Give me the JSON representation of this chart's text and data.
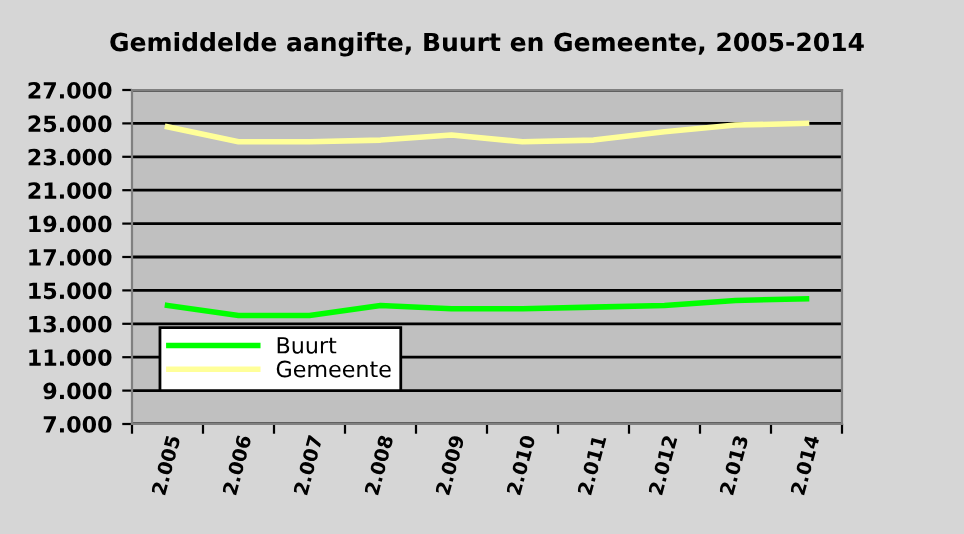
{
  "chart_data": {
    "type": "line",
    "title": "Gemiddelde aangifte, Buurt en Gemeente, 2005-2014",
    "categories": [
      "2.005",
      "2.006",
      "2.007",
      "2.008",
      "2.009",
      "2.010",
      "2.011",
      "2.012",
      "2.013",
      "2.014"
    ],
    "series": [
      {
        "name": "Buurt",
        "color": "#00ff00",
        "values": [
          14100,
          13500,
          13500,
          14100,
          13900,
          13900,
          14000,
          14100,
          14400,
          14500
        ]
      },
      {
        "name": "Gemeente",
        "color": "#ffff99",
        "values": [
          24800,
          23900,
          23900,
          24000,
          24300,
          23900,
          24000,
          24500,
          24900,
          25000
        ]
      }
    ],
    "ylim": [
      7000,
      27000
    ],
    "yticks": [
      {
        "value": 7000,
        "label": "7.000"
      },
      {
        "value": 9000,
        "label": "9.000"
      },
      {
        "value": 11000,
        "label": "11.000"
      },
      {
        "value": 13000,
        "label": "13.000"
      },
      {
        "value": 15000,
        "label": "15.000"
      },
      {
        "value": 17000,
        "label": "17.000"
      },
      {
        "value": 19000,
        "label": "19.000"
      },
      {
        "value": 21000,
        "label": "21.000"
      },
      {
        "value": 23000,
        "label": "23.000"
      },
      {
        "value": 25000,
        "label": "25.000"
      },
      {
        "value": 27000,
        "label": "27.000"
      }
    ],
    "grid": "y",
    "legend": "bottom left",
    "marker": "none",
    "line_style": "solid"
  }
}
